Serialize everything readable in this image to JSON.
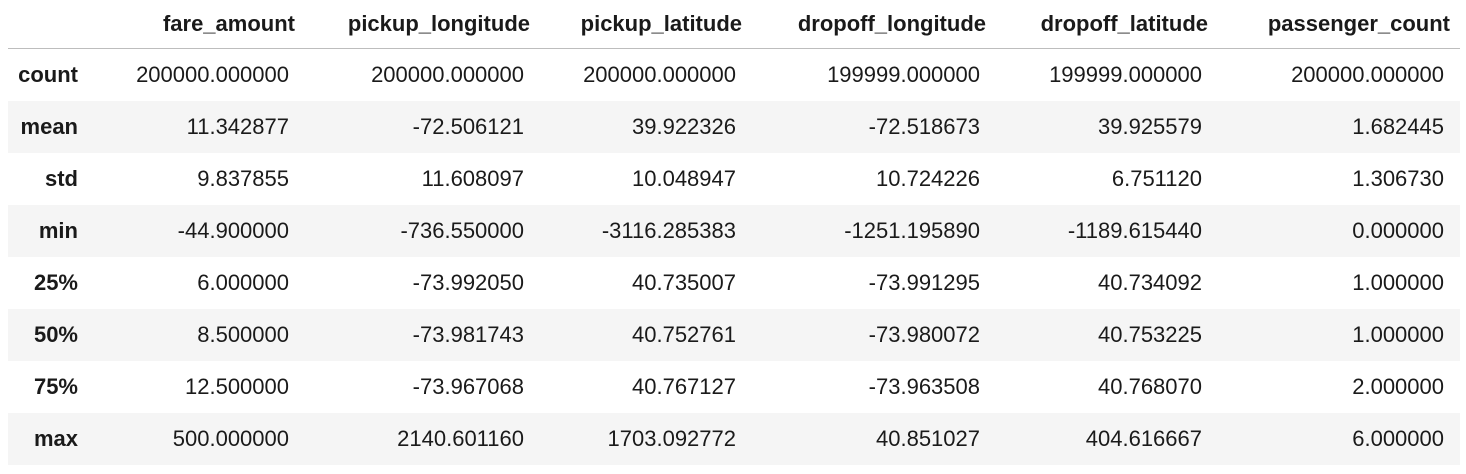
{
  "table": {
    "columns": [
      "",
      "fare_amount",
      "pickup_longitude",
      "pickup_latitude",
      "dropoff_longitude",
      "dropoff_latitude",
      "passenger_count"
    ],
    "rows": [
      {
        "label": "count",
        "values": [
          "200000.000000",
          "200000.000000",
          "200000.000000",
          "199999.000000",
          "199999.000000",
          "200000.000000"
        ]
      },
      {
        "label": "mean",
        "values": [
          "11.342877",
          "-72.506121",
          "39.922326",
          "-72.518673",
          "39.925579",
          "1.682445"
        ]
      },
      {
        "label": "std",
        "values": [
          "9.837855",
          "11.608097",
          "10.048947",
          "10.724226",
          "6.751120",
          "1.306730"
        ]
      },
      {
        "label": "min",
        "values": [
          "-44.900000",
          "-736.550000",
          "-3116.285383",
          "-1251.195890",
          "-1189.615440",
          "0.000000"
        ]
      },
      {
        "label": "25%",
        "values": [
          "6.000000",
          "-73.992050",
          "40.735007",
          "-73.991295",
          "40.734092",
          "1.000000"
        ]
      },
      {
        "label": "50%",
        "values": [
          "8.500000",
          "-73.981743",
          "40.752761",
          "-73.980072",
          "40.753225",
          "1.000000"
        ]
      },
      {
        "label": "75%",
        "values": [
          "12.500000",
          "-73.967068",
          "40.767127",
          "-73.963508",
          "40.768070",
          "2.000000"
        ]
      },
      {
        "label": "max",
        "values": [
          "500.000000",
          "2140.601160",
          "1703.092772",
          "40.851027",
          "404.616667",
          "6.000000"
        ]
      }
    ]
  }
}
